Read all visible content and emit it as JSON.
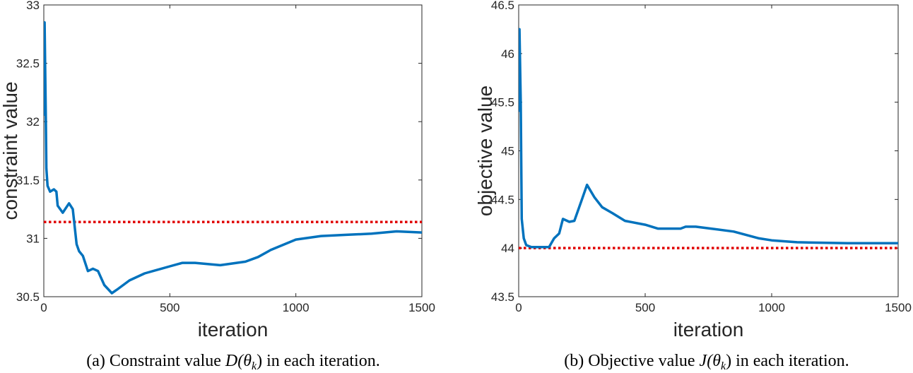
{
  "chart_data": [
    {
      "type": "line",
      "caption_prefix": "(a) Constraint value ",
      "caption_math": "D(θ",
      "caption_sub": "k",
      "caption_suffix": ") in each iteration.",
      "xlabel": "iteration",
      "ylabel": "constraint value",
      "xlim": [
        0,
        1500
      ],
      "ylim": [
        30.5,
        33
      ],
      "xticks": [
        0,
        500,
        1000,
        1500
      ],
      "yticks": [
        30.5,
        31,
        31.5,
        32,
        32.5,
        33
      ],
      "xtick_labels": [
        "0",
        "500",
        "1000",
        "1500"
      ],
      "ytick_labels": [
        "30.5",
        "31",
        "31.5",
        "32",
        "32.5",
        "33"
      ],
      "threshold": 31.14,
      "series": [
        {
          "name": "constraint",
          "color": "#0072BD",
          "x": [
            0,
            3,
            8,
            10,
            15,
            25,
            40,
            50,
            55,
            75,
            100,
            115,
            130,
            140,
            155,
            175,
            195,
            215,
            240,
            270,
            290,
            340,
            400,
            500,
            550,
            600,
            650,
            700,
            800,
            850,
            900,
            1000,
            1100,
            1200,
            1300,
            1400,
            1500
          ],
          "y": [
            32.05,
            32.85,
            32.0,
            31.6,
            31.45,
            31.4,
            31.42,
            31.4,
            31.28,
            31.22,
            31.3,
            31.25,
            30.95,
            30.89,
            30.85,
            30.72,
            30.74,
            30.72,
            30.6,
            30.53,
            30.56,
            30.64,
            30.7,
            30.76,
            30.79,
            30.79,
            30.78,
            30.77,
            30.8,
            30.84,
            30.9,
            30.99,
            31.02,
            31.03,
            31.04,
            31.06,
            31.05
          ]
        }
      ],
      "threshold_color": "#E00000"
    },
    {
      "type": "line",
      "caption_prefix": "(b) Objective value ",
      "caption_math": "J(θ",
      "caption_sub": "k",
      "caption_suffix": ") in each iteration.",
      "xlabel": "iteration",
      "ylabel": "objective value",
      "xlim": [
        0,
        1500
      ],
      "ylim": [
        43.5,
        46.5
      ],
      "xticks": [
        0,
        500,
        1000,
        1500
      ],
      "yticks": [
        43.5,
        44,
        44.5,
        45,
        45.5,
        46,
        46.5
      ],
      "xtick_labels": [
        "0",
        "500",
        "1000",
        "1500"
      ],
      "ytick_labels": [
        "43.5",
        "44",
        "44.5",
        "45",
        "45.5",
        "46",
        "46.5"
      ],
      "threshold": 44.0,
      "series": [
        {
          "name": "objective",
          "color": "#0072BD",
          "x": [
            0,
            3,
            8,
            12,
            20,
            30,
            50,
            120,
            140,
            160,
            175,
            200,
            220,
            250,
            270,
            300,
            330,
            370,
            420,
            500,
            550,
            640,
            660,
            700,
            760,
            850,
            950,
            1000,
            1100,
            1300,
            1500
          ],
          "y": [
            45.4,
            46.25,
            45.5,
            44.3,
            44.1,
            44.03,
            44.01,
            44.01,
            44.1,
            44.15,
            44.3,
            44.27,
            44.28,
            44.5,
            44.65,
            44.52,
            44.42,
            44.36,
            44.28,
            44.24,
            44.2,
            44.2,
            44.22,
            44.22,
            44.2,
            44.17,
            44.1,
            44.08,
            44.06,
            44.05,
            44.05
          ]
        }
      ],
      "threshold_color": "#E00000"
    }
  ]
}
